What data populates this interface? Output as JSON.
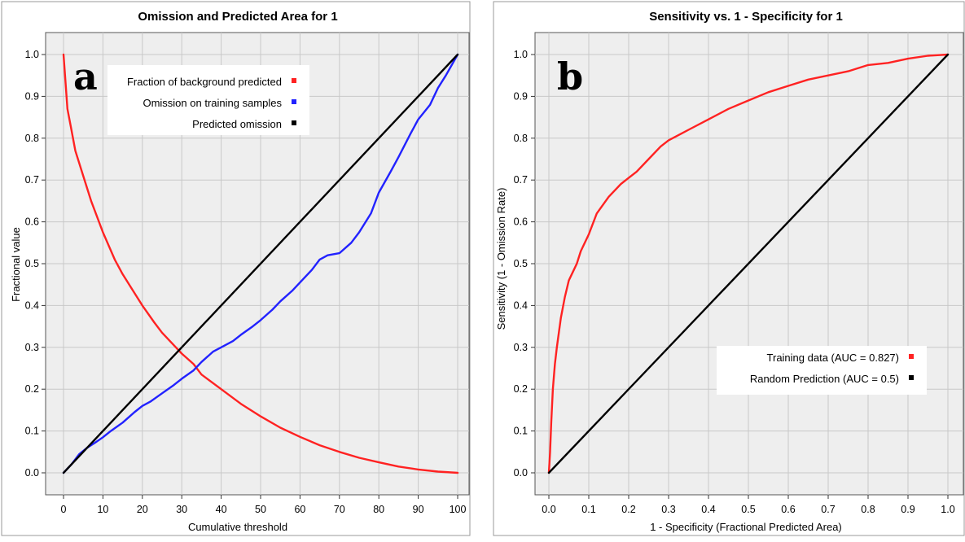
{
  "chart_data": [
    {
      "type": "line",
      "panel_label": "a",
      "title": "Omission and Predicted Area for 1",
      "xlabel": "Cumulative threshold",
      "ylabel": "Fractional value",
      "xlim": [
        0,
        100
      ],
      "ylim": [
        0,
        1
      ],
      "xticks": [
        "0",
        "10",
        "20",
        "30",
        "40",
        "50",
        "60",
        "70",
        "80",
        "90",
        "100"
      ],
      "yticks": [
        "0.0",
        "0.1",
        "0.2",
        "0.3",
        "0.4",
        "0.5",
        "0.6",
        "0.7",
        "0.8",
        "0.9",
        "1.0"
      ],
      "grid": true,
      "background": "#eeeeee",
      "legend_position": "top-right",
      "series": [
        {
          "name": "Fraction of background predicted",
          "color": "#ff2222",
          "x": [
            0,
            1,
            2,
            3,
            5,
            7,
            10,
            13,
            15,
            18,
            20,
            23,
            25,
            28,
            30,
            33,
            35,
            40,
            45,
            50,
            55,
            60,
            65,
            70,
            75,
            80,
            85,
            90,
            95,
            100
          ],
          "y": [
            1.0,
            0.87,
            0.82,
            0.77,
            0.71,
            0.65,
            0.575,
            0.51,
            0.475,
            0.43,
            0.4,
            0.36,
            0.335,
            0.305,
            0.285,
            0.26,
            0.235,
            0.2,
            0.165,
            0.135,
            0.108,
            0.086,
            0.066,
            0.05,
            0.036,
            0.025,
            0.015,
            0.008,
            0.003,
            0.0
          ]
        },
        {
          "name": "Omission on training samples",
          "color": "#2222ff",
          "x": [
            0,
            2,
            4,
            6,
            8,
            10,
            12,
            15,
            18,
            20,
            22,
            25,
            28,
            30,
            33,
            35,
            38,
            40,
            43,
            45,
            48,
            50,
            53,
            55,
            58,
            60,
            63,
            65,
            67,
            70,
            73,
            75,
            78,
            80,
            83,
            85,
            88,
            90,
            93,
            95,
            97,
            100
          ],
          "y": [
            0.0,
            0.02,
            0.045,
            0.06,
            0.072,
            0.085,
            0.1,
            0.12,
            0.145,
            0.16,
            0.17,
            0.19,
            0.21,
            0.225,
            0.245,
            0.265,
            0.29,
            0.3,
            0.315,
            0.33,
            0.35,
            0.365,
            0.39,
            0.41,
            0.435,
            0.455,
            0.485,
            0.51,
            0.52,
            0.525,
            0.55,
            0.575,
            0.62,
            0.67,
            0.72,
            0.755,
            0.81,
            0.845,
            0.88,
            0.92,
            0.95,
            1.0
          ]
        },
        {
          "name": "Predicted omission",
          "color": "#000000",
          "x": [
            0,
            100
          ],
          "y": [
            0.0,
            1.0
          ]
        }
      ]
    },
    {
      "type": "line",
      "panel_label": "b",
      "title": "Sensitivity vs. 1 - Specificity for 1",
      "xlabel": "1 - Specificity  (Fractional Predicted Area)",
      "ylabel": "Sensitivity  (1 - Omission Rate)",
      "xlim": [
        0,
        1
      ],
      "ylim": [
        0,
        1
      ],
      "xticks": [
        "0.0",
        "0.1",
        "0.2",
        "0.3",
        "0.4",
        "0.5",
        "0.6",
        "0.7",
        "0.8",
        "0.9",
        "1.0"
      ],
      "yticks": [
        "0.0",
        "0.1",
        "0.2",
        "0.3",
        "0.4",
        "0.5",
        "0.6",
        "0.7",
        "0.8",
        "0.9",
        "1.0"
      ],
      "grid": true,
      "background": "#eeeeee",
      "legend_position": "bottom-right",
      "series": [
        {
          "name": "Training data (AUC = 0.827)",
          "color": "#ff2222",
          "x": [
            0.0,
            0.003,
            0.006,
            0.01,
            0.015,
            0.02,
            0.03,
            0.04,
            0.05,
            0.06,
            0.07,
            0.08,
            0.1,
            0.12,
            0.15,
            0.18,
            0.2,
            0.22,
            0.25,
            0.28,
            0.3,
            0.33,
            0.35,
            0.4,
            0.45,
            0.5,
            0.55,
            0.6,
            0.65,
            0.7,
            0.75,
            0.8,
            0.85,
            0.9,
            0.95,
            1.0
          ],
          "y": [
            0.0,
            0.05,
            0.12,
            0.2,
            0.26,
            0.3,
            0.37,
            0.42,
            0.46,
            0.48,
            0.5,
            0.53,
            0.57,
            0.62,
            0.66,
            0.69,
            0.705,
            0.72,
            0.75,
            0.78,
            0.795,
            0.81,
            0.82,
            0.845,
            0.87,
            0.89,
            0.91,
            0.925,
            0.94,
            0.95,
            0.96,
            0.975,
            0.98,
            0.99,
            0.997,
            1.0
          ]
        },
        {
          "name": "Random Prediction (AUC = 0.5)",
          "color": "#000000",
          "x": [
            0,
            1
          ],
          "y": [
            0,
            1
          ]
        }
      ]
    }
  ]
}
